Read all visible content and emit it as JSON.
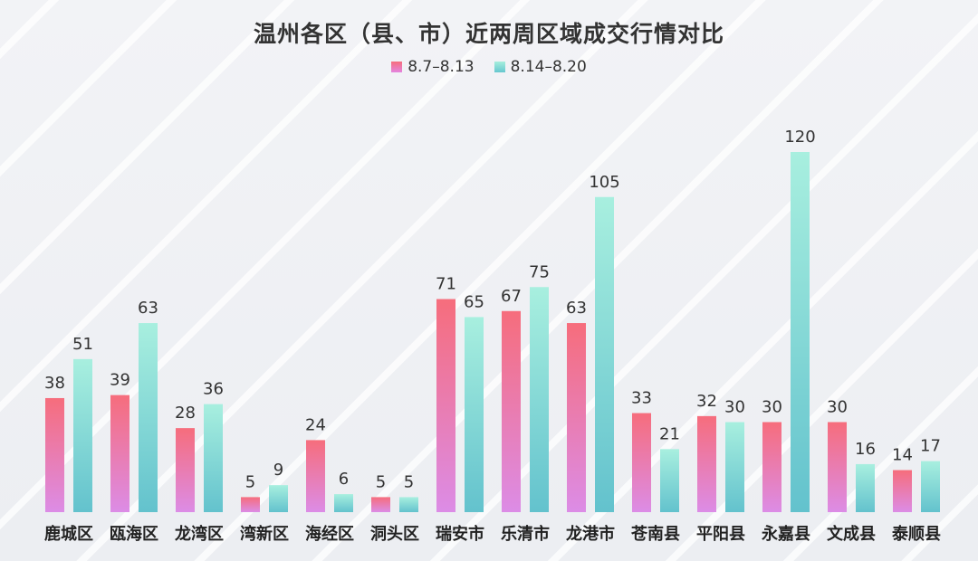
{
  "chart_data": {
    "type": "bar",
    "title": "温州各区（县、市）近两周区域成交行情对比",
    "categories": [
      "鹿城区",
      "瓯海区",
      "龙湾区",
      "湾新区",
      "海经区",
      "洞头区",
      "瑞安市",
      "乐清市",
      "龙港市",
      "苍南县",
      "平阳县",
      "永嘉县",
      "文成县",
      "泰顺县"
    ],
    "series": [
      {
        "name": "8.7–8.13",
        "values": [
          38,
          39,
          28,
          5,
          24,
          5,
          71,
          67,
          63,
          33,
          32,
          30,
          30,
          14
        ],
        "color": "#f66d7c"
      },
      {
        "name": "8.14–8.20",
        "values": [
          51,
          63,
          36,
          9,
          6,
          5,
          65,
          75,
          105,
          21,
          30,
          120,
          16,
          17
        ],
        "color": "#8fe0d8"
      }
    ],
    "ylim": [
      0,
      120
    ],
    "grid": false,
    "legend": "top-center",
    "xlabel": "",
    "ylabel": ""
  }
}
